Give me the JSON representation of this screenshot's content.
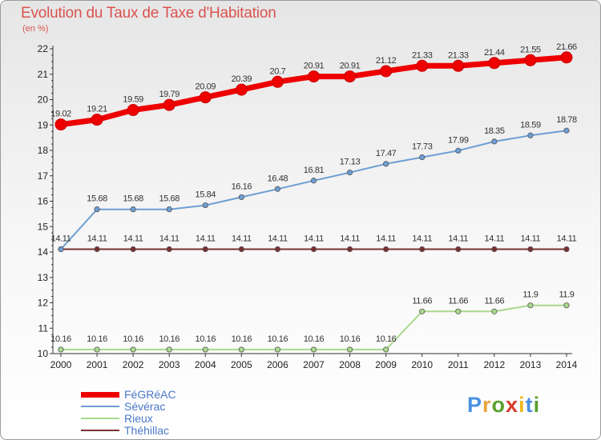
{
  "title": "Evolution du Taux de Taxe d'Habitation",
  "subtitle": "(en %)",
  "logo": {
    "text": "Proxiti",
    "letter_colors": [
      "#4a90e2",
      "#e8a33b",
      "#5aa02c",
      "#d93b2b",
      "#f0b81c",
      "#4a90e2",
      "#5aa02c"
    ]
  },
  "chart_data": {
    "type": "line",
    "title": "Evolution du Taux de Taxe d'Habitation",
    "ylabel": "(en %)",
    "xlabel": "",
    "ylim": [
      10,
      22
    ],
    "yticks": [
      "10",
      "11",
      "12",
      "13",
      "14",
      "15",
      "16",
      "17",
      "18",
      "19",
      "20",
      "21",
      "22"
    ],
    "x": [
      "2000",
      "2001",
      "2002",
      "2003",
      "2004",
      "2005",
      "2006",
      "2007",
      "2008",
      "2009",
      "2010",
      "2011",
      "2012",
      "2013",
      "2014"
    ],
    "grid": false,
    "legend_position": "bottom-left",
    "series": [
      {
        "name": "FéGRéAC",
        "color": "#ee0000",
        "values": [
          19.02,
          19.21,
          19.59,
          19.79,
          20.09,
          20.39,
          20.7,
          20.91,
          20.91,
          21.12,
          21.33,
          21.33,
          21.44,
          21.55,
          21.66
        ],
        "labels": [
          "19.02",
          "19.21",
          "19.59",
          "19.79",
          "20.09",
          "20.39",
          "20.7",
          "20.91",
          "20.91",
          "21.12",
          "21.33",
          "21.33",
          "21.44",
          "21.55",
          "21.66"
        ]
      },
      {
        "name": "Sévérac",
        "color": "#6d9ed4",
        "values": [
          14.11,
          15.68,
          15.68,
          15.68,
          15.84,
          16.16,
          16.48,
          16.81,
          17.13,
          17.47,
          17.73,
          17.99,
          18.35,
          18.59,
          18.78
        ],
        "labels": [
          "",
          "15.68",
          "15.68",
          "15.68",
          "15.84",
          "16.16",
          "16.48",
          "16.81",
          "17.13",
          "17.47",
          "17.73",
          "17.99",
          "18.35",
          "18.59",
          "18.78"
        ]
      },
      {
        "name": "Rieux",
        "color": "#a9d98b",
        "values": [
          10.16,
          10.16,
          10.16,
          10.16,
          10.16,
          10.16,
          10.16,
          10.16,
          10.16,
          10.16,
          11.66,
          11.66,
          11.66,
          11.9,
          11.9
        ],
        "labels": [
          "10.16",
          "10.16",
          "10.16",
          "10.16",
          "10.16",
          "10.16",
          "10.16",
          "10.16",
          "10.16",
          "10.16",
          "11.66",
          "11.66",
          "11.66",
          "11.9",
          "11.9"
        ]
      },
      {
        "name": "Théhillac",
        "color": "#7a3030",
        "values": [
          14.11,
          14.11,
          14.11,
          14.11,
          14.11,
          14.11,
          14.11,
          14.11,
          14.11,
          14.11,
          14.11,
          14.11,
          14.11,
          14.11,
          14.11
        ],
        "labels": [
          "14.11",
          "14.11",
          "14.11",
          "14.11",
          "14.11",
          "14.11",
          "14.11",
          "14.11",
          "14.11",
          "14.11",
          "14.11",
          "14.11",
          "14.11",
          "14.11",
          "14.11"
        ]
      }
    ]
  }
}
